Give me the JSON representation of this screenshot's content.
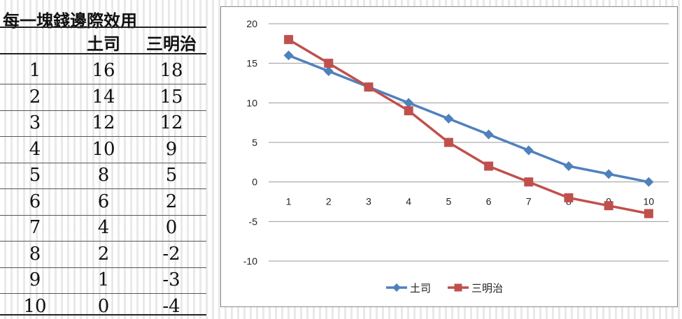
{
  "table": {
    "title": "每一塊錢邊際效用",
    "headers": [
      "",
      "土司",
      "三明治"
    ],
    "rows": [
      [
        "1",
        "16",
        "18"
      ],
      [
        "2",
        "14",
        "15"
      ],
      [
        "3",
        "12",
        "12"
      ],
      [
        "4",
        "10",
        "9"
      ],
      [
        "5",
        "8",
        "5"
      ],
      [
        "6",
        "6",
        "2"
      ],
      [
        "7",
        "4",
        "0"
      ],
      [
        "8",
        "2",
        "-2"
      ],
      [
        "9",
        "1",
        "-3"
      ],
      [
        "10",
        "0",
        "-4"
      ]
    ]
  },
  "chart_data": {
    "type": "line",
    "title": "",
    "xlabel": "",
    "ylabel": "",
    "x": [
      1,
      2,
      3,
      4,
      5,
      6,
      7,
      8,
      9,
      10
    ],
    "ylim": [
      -10,
      20
    ],
    "yticks": [
      -10,
      -5,
      0,
      5,
      10,
      15,
      20
    ],
    "grid": true,
    "legend_position": "bottom",
    "series": [
      {
        "name": "土司",
        "values": [
          16,
          14,
          12,
          10,
          8,
          6,
          4,
          2,
          1,
          0
        ],
        "color": "#4F81BD",
        "marker": "diamond"
      },
      {
        "name": "三明治",
        "values": [
          18,
          15,
          12,
          9,
          5,
          2,
          0,
          -2,
          -3,
          -4
        ],
        "color": "#C0504D",
        "marker": "square"
      }
    ]
  }
}
